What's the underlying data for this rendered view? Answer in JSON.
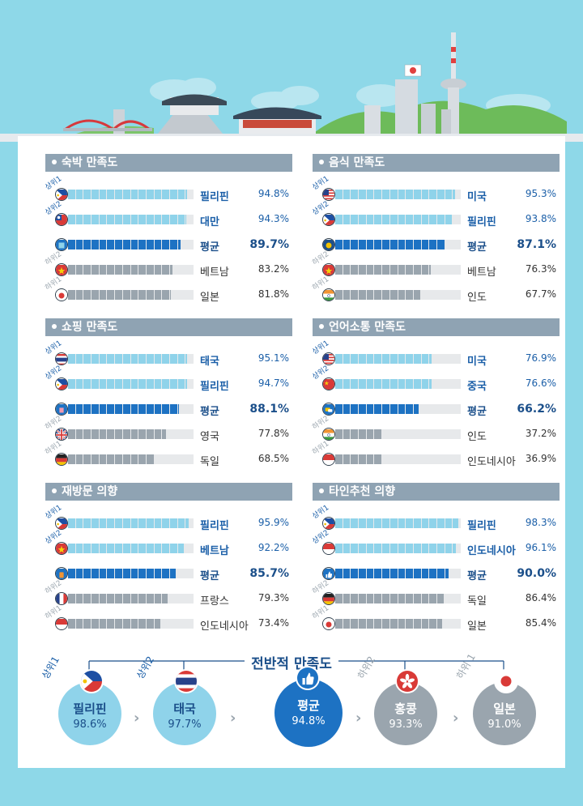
{
  "colors": {
    "sky": "#8ed8e8",
    "header": "#8fa3b3",
    "light_bar": "#8fd3ea",
    "avg_bar": "#1d72c3",
    "gray_bar": "#9aa5ae",
    "bar_bg": "#e7e9eb",
    "top_text": "#1b5fa8",
    "avg_text": "#1b4f8a"
  },
  "chart_data": [
    {
      "type": "bar",
      "title": "숙박 만족도",
      "rows": [
        {
          "rank": "상위1",
          "kind": "top",
          "name": "필리핀",
          "value": "94.8%",
          "flag": "philippines"
        },
        {
          "rank": "상위2",
          "kind": "top",
          "name": "대만",
          "value": "94.3%",
          "flag": "taiwan"
        },
        {
          "rank": "",
          "kind": "avg",
          "name": "평균",
          "value": "89.7%",
          "flag": "bed-icon"
        },
        {
          "rank": "하위2",
          "kind": "low",
          "name": "베트남",
          "value": "83.2%",
          "flag": "vietnam"
        },
        {
          "rank": "하위1",
          "kind": "low",
          "name": "일본",
          "value": "81.8%",
          "flag": "japan"
        }
      ]
    },
    {
      "type": "bar",
      "title": "음식 만족도",
      "rows": [
        {
          "rank": "상위1",
          "kind": "top",
          "name": "미국",
          "value": "95.3%",
          "flag": "usa"
        },
        {
          "rank": "상위2",
          "kind": "top",
          "name": "필리핀",
          "value": "93.8%",
          "flag": "philippines"
        },
        {
          "rank": "",
          "kind": "avg",
          "name": "평균",
          "value": "87.1%",
          "flag": "food-icon"
        },
        {
          "rank": "하위2",
          "kind": "low",
          "name": "베트남",
          "value": "76.3%",
          "flag": "vietnam"
        },
        {
          "rank": "하위1",
          "kind": "low",
          "name": "인도",
          "value": "67.7%",
          "flag": "india"
        }
      ]
    },
    {
      "type": "bar",
      "title": "쇼핑 만족도",
      "rows": [
        {
          "rank": "상위1",
          "kind": "top",
          "name": "태국",
          "value": "95.1%",
          "flag": "thailand"
        },
        {
          "rank": "상위2",
          "kind": "top",
          "name": "필리핀",
          "value": "94.7%",
          "flag": "philippines"
        },
        {
          "rank": "",
          "kind": "avg",
          "name": "평균",
          "value": "88.1%",
          "flag": "shopping-icon"
        },
        {
          "rank": "하위2",
          "kind": "low",
          "name": "영국",
          "value": "77.8%",
          "flag": "uk"
        },
        {
          "rank": "하위1",
          "kind": "low",
          "name": "독일",
          "value": "68.5%",
          "flag": "germany"
        }
      ]
    },
    {
      "type": "bar",
      "title": "언어소통 만족도",
      "rows": [
        {
          "rank": "상위1",
          "kind": "top",
          "name": "미국",
          "value": "76.9%",
          "flag": "usa"
        },
        {
          "rank": "상위2",
          "kind": "top",
          "name": "중국",
          "value": "76.6%",
          "flag": "china"
        },
        {
          "rank": "",
          "kind": "avg",
          "name": "평균",
          "value": "66.2%",
          "flag": "speech-icon"
        },
        {
          "rank": "하위2",
          "kind": "low",
          "name": "인도",
          "value": "37.2%",
          "flag": "india"
        },
        {
          "rank": "하위1",
          "kind": "low",
          "name": "인도네시아",
          "value": "36.9%",
          "flag": "indonesia"
        }
      ]
    },
    {
      "type": "bar",
      "title": "재방문 의향",
      "rows": [
        {
          "rank": "상위1",
          "kind": "top",
          "name": "필리핀",
          "value": "95.9%",
          "flag": "philippines"
        },
        {
          "rank": "상위2",
          "kind": "top",
          "name": "베트남",
          "value": "92.2%",
          "flag": "vietnam"
        },
        {
          "rank": "",
          "kind": "avg",
          "name": "평균",
          "value": "85.7%",
          "flag": "luggage-icon"
        },
        {
          "rank": "하위2",
          "kind": "low",
          "name": "프랑스",
          "value": "79.3%",
          "flag": "france"
        },
        {
          "rank": "하위1",
          "kind": "low",
          "name": "인도네시아",
          "value": "73.4%",
          "flag": "indonesia"
        }
      ]
    },
    {
      "type": "bar",
      "title": "타인추천 의향",
      "rows": [
        {
          "rank": "상위1",
          "kind": "top",
          "name": "필리핀",
          "value": "98.3%",
          "flag": "philippines"
        },
        {
          "rank": "상위2",
          "kind": "top",
          "name": "인도네시아",
          "value": "96.1%",
          "flag": "indonesia"
        },
        {
          "rank": "",
          "kind": "avg",
          "name": "평균",
          "value": "90.0%",
          "flag": "thumbs-up-icon"
        },
        {
          "rank": "하위2",
          "kind": "low",
          "name": "독일",
          "value": "86.4%",
          "flag": "germany"
        },
        {
          "rank": "하위1",
          "kind": "low",
          "name": "일본",
          "value": "85.4%",
          "flag": "japan"
        }
      ]
    }
  ],
  "overall": {
    "title": "전반적 만족도",
    "items": [
      {
        "rank": "상위1",
        "kind": "top",
        "name": "필리핀",
        "value": "98.6%",
        "flag": "philippines"
      },
      {
        "rank": "상위2",
        "kind": "top",
        "name": "태국",
        "value": "97.7%",
        "flag": "thailand"
      },
      {
        "rank": "",
        "kind": "avg",
        "name": "평균",
        "value": "94.8%",
        "flag": "thumbs-up-icon"
      },
      {
        "rank": "하위2",
        "kind": "low",
        "name": "홍콩",
        "value": "93.3%",
        "flag": "hongkong"
      },
      {
        "rank": "하위 1",
        "kind": "low",
        "name": "일본",
        "value": "91.0%",
        "flag": "japan"
      }
    ]
  }
}
